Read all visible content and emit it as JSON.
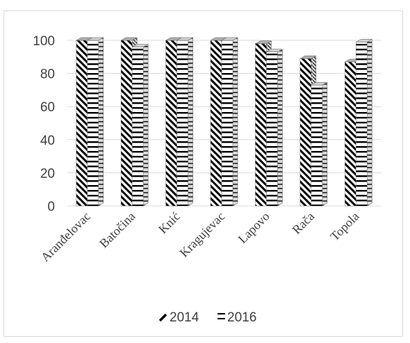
{
  "chart_data": {
    "type": "bar",
    "categories": [
      "Aranđelovac",
      "Batočina",
      "Knić",
      "Kragujevac",
      "Lapovo",
      "Rača",
      "Topola"
    ],
    "series": [
      {
        "name": "2014",
        "values": [
          100,
          100,
          100,
          100,
          98,
          89,
          87
        ]
      },
      {
        "name": "2016",
        "values": [
          100,
          96,
          100,
          100,
          93,
          73,
          99
        ]
      }
    ],
    "title": "",
    "xlabel": "",
    "ylabel": "",
    "ylim": [
      0,
      100
    ],
    "yticks": [
      0,
      20,
      40,
      60,
      80,
      100
    ],
    "grid": true,
    "legend": "bottom",
    "style": "3d-column-patterned"
  }
}
